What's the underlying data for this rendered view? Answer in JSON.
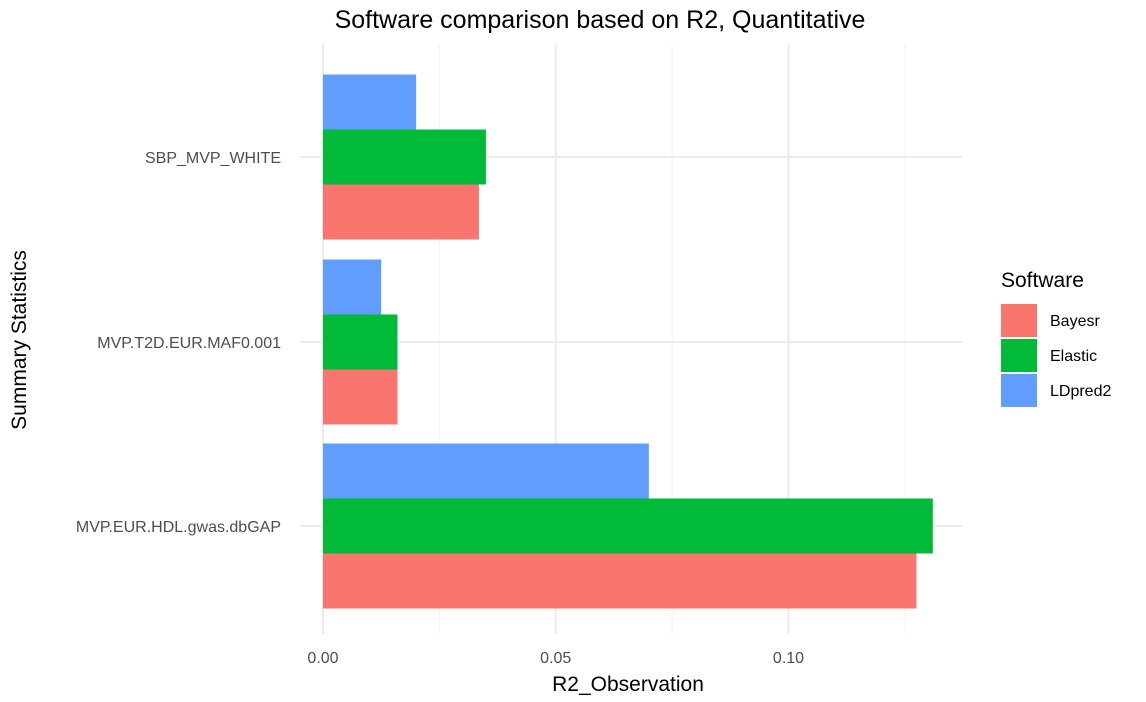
{
  "chart_data": {
    "type": "bar",
    "orientation": "horizontal",
    "title": "Software comparison based on R2, Quantitative",
    "xlabel": "R2_Observation",
    "ylabel": "Summary Statistics",
    "categories": [
      "SBP_MVP_WHITE",
      "MVP.T2D.EUR.MAF0.001",
      "MVP.EUR.HDL.gwas.dbGAP"
    ],
    "series": [
      {
        "name": "Bayesr",
        "color": "#F8766D",
        "values": [
          0.0335,
          0.016,
          0.1275
        ]
      },
      {
        "name": "Elastic",
        "color": "#00BA38",
        "values": [
          0.035,
          0.016,
          0.131
        ]
      },
      {
        "name": "LDpred2",
        "color": "#619CFF",
        "values": [
          0.02,
          0.0125,
          0.07
        ]
      }
    ],
    "xlim": [
      0,
      0.1375
    ],
    "xticks": [
      0.0,
      0.05,
      0.1
    ],
    "xtick_labels": [
      "0.00",
      "0.05",
      "0.10"
    ],
    "legend": {
      "title": "Software",
      "position": "right"
    },
    "grid": true
  }
}
